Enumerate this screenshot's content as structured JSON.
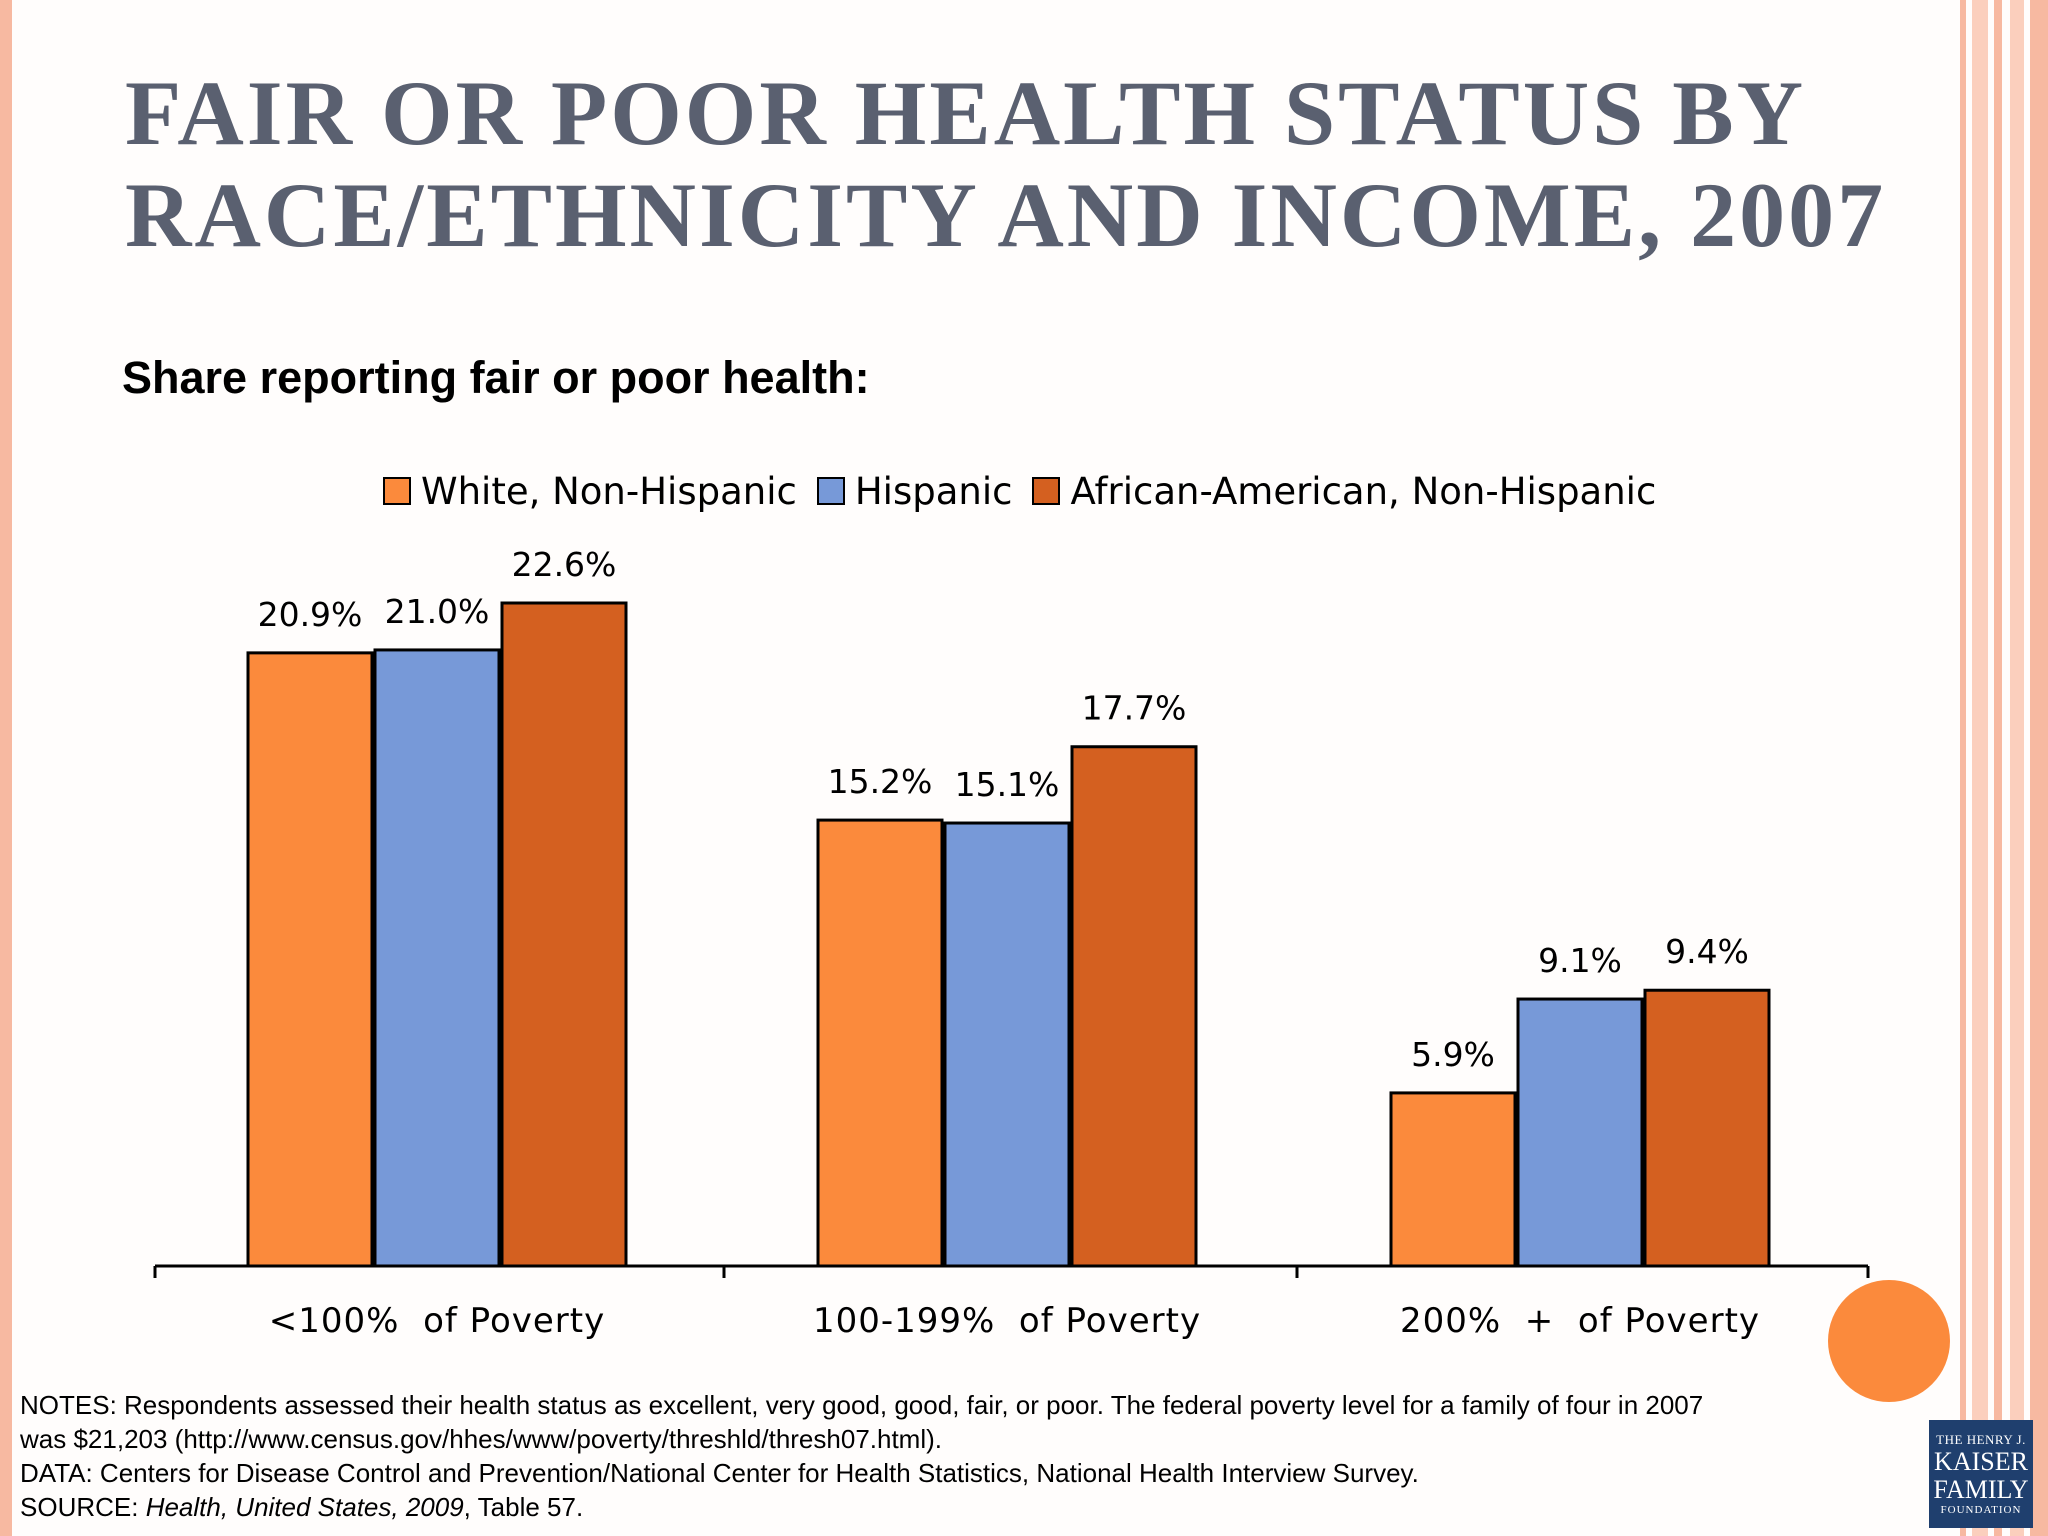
{
  "title": {
    "line1": "FAIR OR POOR HEALTH STATUS BY",
    "line2": "RACE/ETHNICITY AND INCOME, 2007"
  },
  "subtitle": "Share reporting fair or poor health:",
  "colors": {
    "white_nonhispanic": "#fb8a3c",
    "hispanic": "#7799d8",
    "african_american": "#d46020",
    "accent_dot": "#fb8a3c",
    "title_text": "#5a6070"
  },
  "chart_data": {
    "type": "bar",
    "categories": [
      "<100%  of Poverty",
      "100-199%  of Poverty",
      "200%  +  of Poverty"
    ],
    "series": [
      {
        "name": "White, Non-Hispanic",
        "values": [
          20.9,
          15.2,
          5.9
        ],
        "labels": [
          "20.9%",
          "15.2%",
          "5.9%"
        ]
      },
      {
        "name": "Hispanic",
        "values": [
          21.0,
          15.1,
          9.1
        ],
        "labels": [
          "21.0%",
          "15.1%",
          "9.1%"
        ]
      },
      {
        "name": "African-American, Non-Hispanic",
        "values": [
          22.6,
          17.7,
          9.4
        ],
        "labels": [
          "22.6%",
          "17.7%",
          "9.4%"
        ]
      }
    ],
    "ylim": [
      0,
      22.6
    ],
    "grid": false,
    "legend_position": "top"
  },
  "notes": {
    "line1": "NOTES: Respondents assessed their health status as excellent, very good, good, fair, or poor.  The federal poverty level for a family of four in 2007",
    "line2": "was $21,203 (http://www.census.gov/hhes/www/poverty/threshld/thresh07.html).",
    "line3": "DATA: Centers for Disease Control and Prevention/National Center for Health Statistics, National Health Interview Survey.",
    "source_prefix": "SOURCE: ",
    "source_title": "Health, United States, 2009",
    "source_suffix": ", Table 57."
  },
  "logo": {
    "line1": "THE HENRY J.",
    "line2": "KAISER",
    "line3": "FAMILY",
    "line4": "FOUNDATION"
  }
}
